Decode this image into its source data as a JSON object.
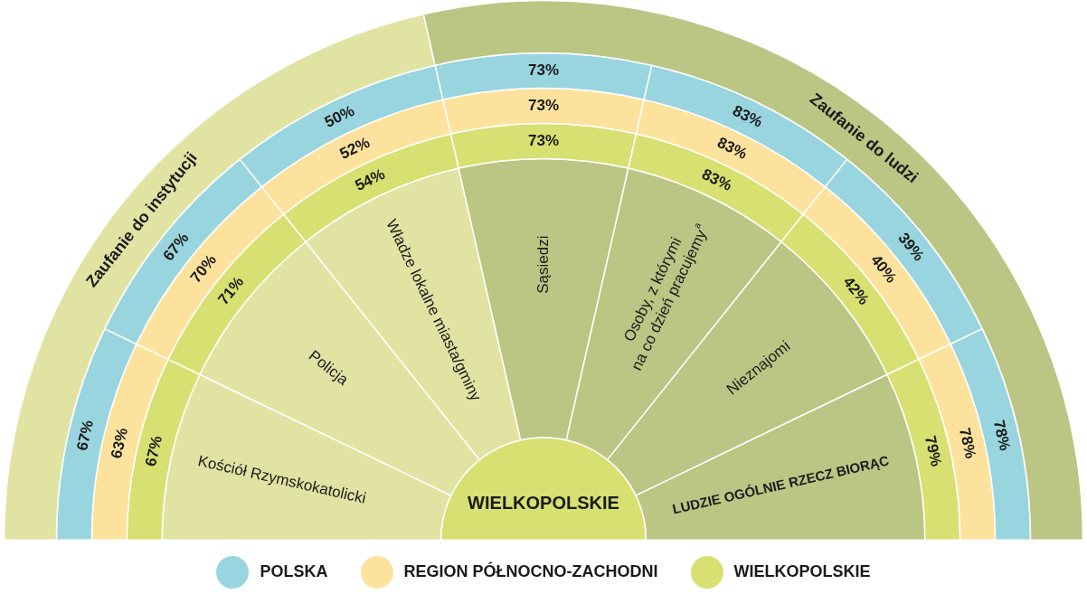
{
  "chart_data": {
    "type": "other",
    "title": "WIELKOPOLSKIE",
    "categories": [
      "Kościół Rzymskokatolicki",
      "Policja",
      "Władze lokalne miasta/gminy",
      "Sąsiedzi",
      "Osoby, z którymi\nna co dzień pracujemy$^{a}$",
      "Nieznajomi",
      "LUDZIE OGÓLNIE RZECZ BIORĄC"
    ],
    "colors": [
      "#e1e3a3",
      "#e1e3a3",
      "#e1e3a3",
      "#bbc584",
      "#bbc584",
      "#bbc584",
      "#bbc584"
    ],
    "annotations": [
      "Zaufanie do instytucji",
      "Zaufanie do ludzi"
    ],
    "legend": "bottom",
    "series": [
      {
        "name": "POLSKA",
        "color": "#99d5de",
        "values": [
          67,
          67,
          50,
          73,
          83,
          39,
          78
        ],
        "value_labels": [
          "67%",
          "67%",
          "50%",
          "73%",
          "83%",
          "39%",
          "78%"
        ]
      },
      {
        "name": "REGION PÓŁNOCNO-ZACHODNI",
        "color": "#fde29d",
        "values": [
          63,
          70,
          52,
          73,
          83,
          40,
          78
        ],
        "value_labels": [
          "63%",
          "70%",
          "52%",
          "73%",
          "83%",
          "40%",
          "78%"
        ]
      },
      {
        "name": "WIELKOPOLSKIE",
        "color": "#d7e070",
        "values": [
          67,
          71,
          54,
          73,
          83,
          42,
          79
        ],
        "value_labels": [
          "67%",
          "71%",
          "54%",
          "73%",
          "83%",
          "42%",
          "79%"
        ]
      }
    ]
  }
}
